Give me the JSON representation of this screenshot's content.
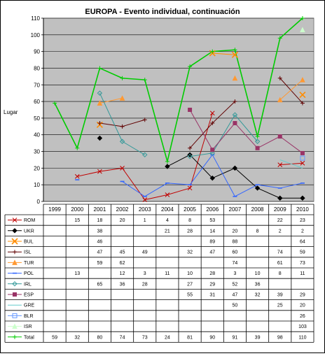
{
  "chart_data": {
    "type": "line",
    "title": "EUROPA - Evento individual, continuación",
    "ylabel": "Lugar",
    "ylim": [
      0,
      110
    ],
    "yticks": [
      0,
      10,
      20,
      30,
      40,
      50,
      60,
      70,
      80,
      90,
      100,
      110
    ],
    "grid": true,
    "plot_background": "#c0c0c0",
    "legend": "table-below",
    "categories": [
      "1999",
      "2000",
      "2001",
      "2002",
      "2003",
      "2004",
      "2005",
      "2006",
      "2007",
      "2008",
      "2009",
      "2010"
    ],
    "series": [
      {
        "name": "ROM",
        "color": "#c00000",
        "marker": "x",
        "values": [
          null,
          15,
          18,
          20,
          1,
          4,
          8,
          53,
          null,
          null,
          22,
          23
        ]
      },
      {
        "name": "UKR",
        "color": "#000000",
        "marker": "diamond",
        "values": [
          null,
          null,
          38,
          null,
          null,
          21,
          28,
          14,
          20,
          8,
          2,
          2
        ]
      },
      {
        "name": "BUL",
        "color": "#ff8c00",
        "marker": "xbox",
        "values": [
          null,
          null,
          46,
          null,
          null,
          null,
          null,
          89,
          88,
          null,
          null,
          64
        ]
      },
      {
        "name": "ISL",
        "color": "#600000",
        "marker": "plus",
        "values": [
          null,
          null,
          47,
          45,
          49,
          null,
          32,
          47,
          60,
          null,
          74,
          59
        ]
      },
      {
        "name": "TUR",
        "color": "#ff9933",
        "marker": "triangle",
        "values": [
          null,
          null,
          59,
          62,
          null,
          null,
          null,
          null,
          74,
          null,
          61,
          73
        ]
      },
      {
        "name": "POL",
        "color": "#3366ff",
        "marker": "dash",
        "values": [
          null,
          13,
          null,
          12,
          3,
          11,
          10,
          28,
          3,
          10,
          8,
          11
        ]
      },
      {
        "name": "IRL",
        "color": "#339999",
        "marker": "diamond-open",
        "values": [
          null,
          null,
          65,
          36,
          28,
          null,
          27,
          29,
          52,
          36,
          null,
          null
        ]
      },
      {
        "name": "ESP",
        "color": "#993366",
        "marker": "square",
        "values": [
          null,
          null,
          null,
          null,
          null,
          null,
          55,
          31,
          47,
          32,
          39,
          29
        ]
      },
      {
        "name": "GRE",
        "color": "#66cccc",
        "marker": "none",
        "values": [
          null,
          null,
          null,
          null,
          null,
          null,
          null,
          null,
          50,
          null,
          25,
          20
        ]
      },
      {
        "name": "BLR",
        "color": "#6699ff",
        "marker": "square-open",
        "values": [
          null,
          null,
          null,
          null,
          null,
          null,
          null,
          null,
          null,
          null,
          null,
          26
        ]
      },
      {
        "name": "ISR",
        "color": "#ccffcc",
        "marker": "triangle",
        "values": [
          null,
          null,
          null,
          null,
          null,
          null,
          null,
          null,
          null,
          null,
          null,
          103
        ]
      },
      {
        "name": "Total",
        "color": "#00cc00",
        "marker": "plus",
        "values": [
          59,
          32,
          80,
          74,
          73,
          24,
          81,
          90,
          91,
          39,
          98,
          110
        ]
      }
    ]
  }
}
